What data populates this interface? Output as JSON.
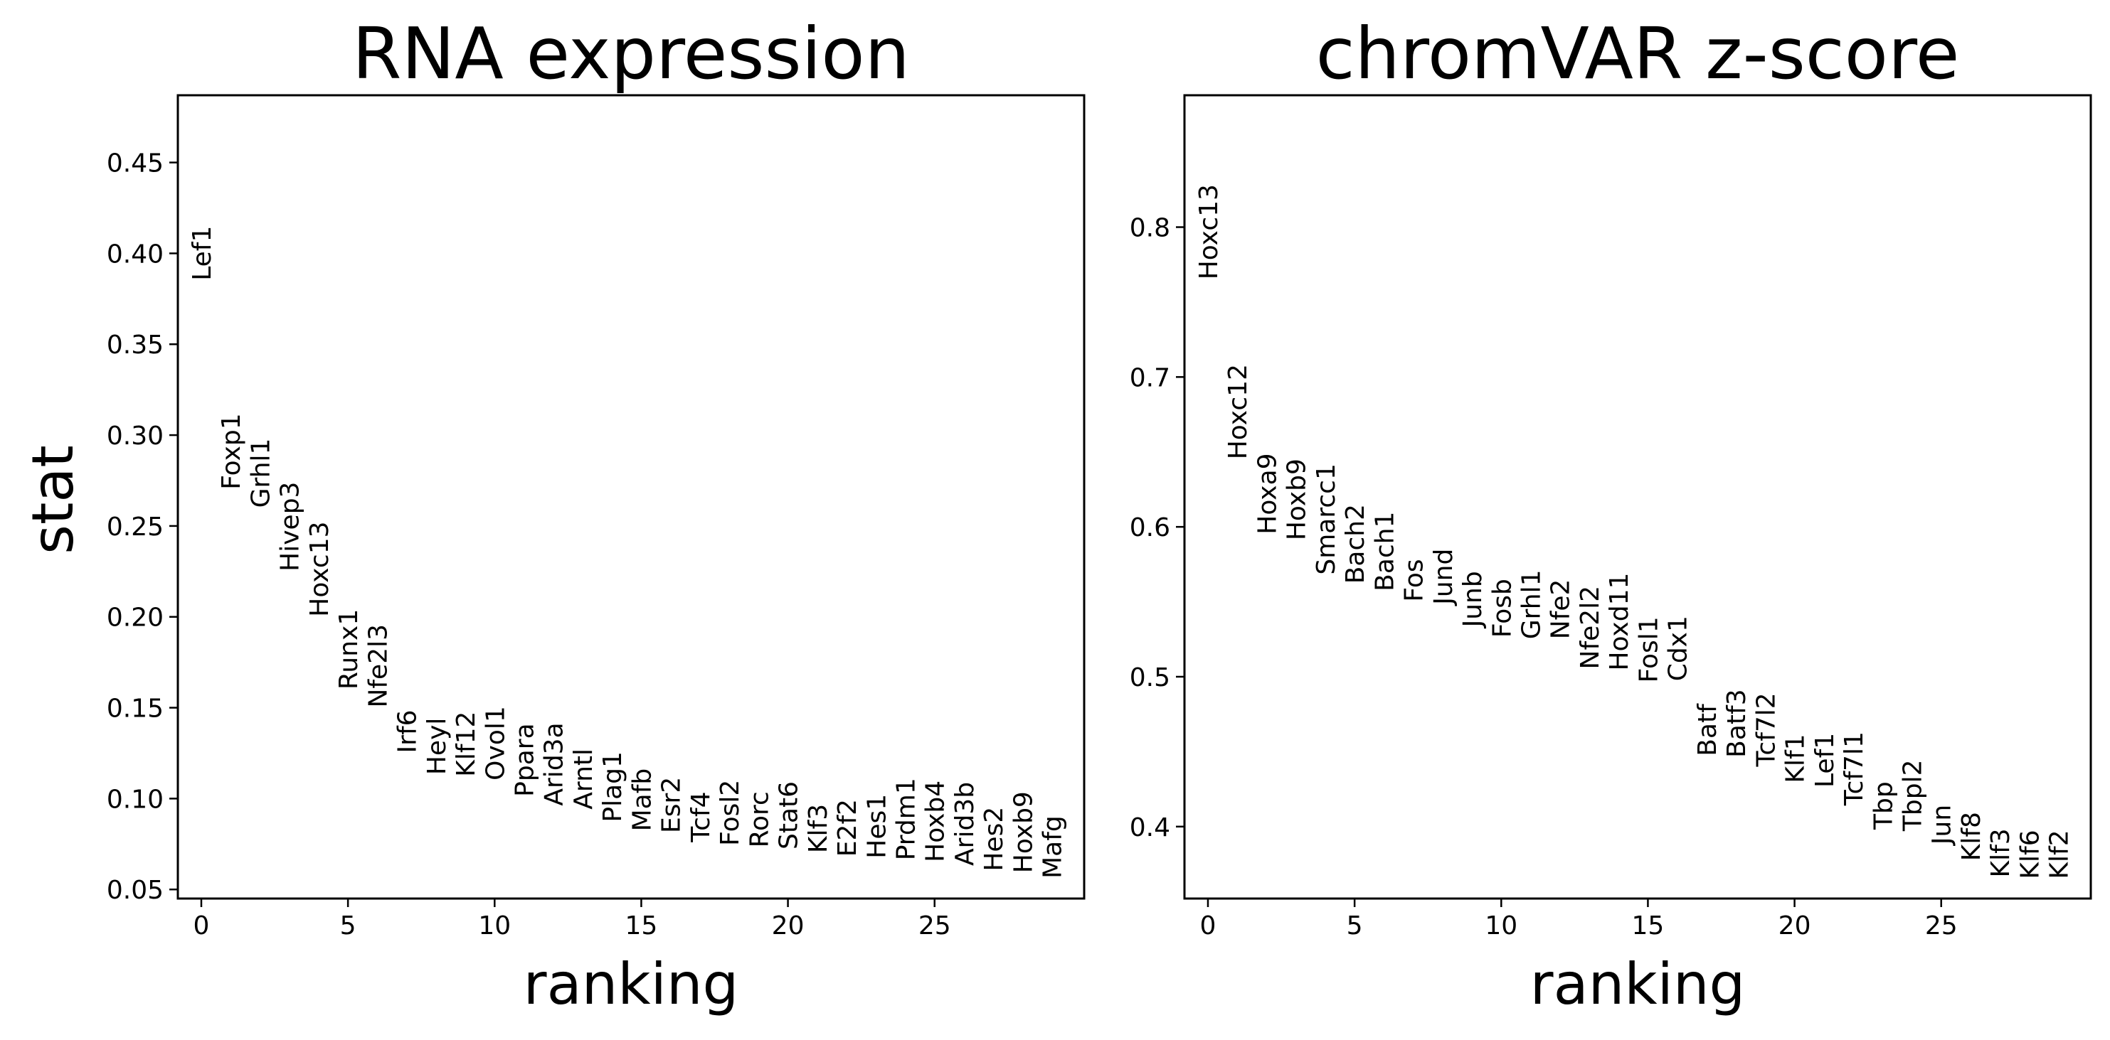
{
  "chart_data": [
    {
      "type": "scatter",
      "title": "RNA expression",
      "xlabel": "ranking",
      "ylabel": "stat",
      "xlim": [
        -0.8,
        30.1
      ],
      "ylim": [
        0.045,
        0.487
      ],
      "xticks": [
        0,
        5,
        10,
        15,
        20,
        25
      ],
      "yticks": [
        0.05,
        0.1,
        0.15,
        0.2,
        0.25,
        0.3,
        0.35,
        0.4,
        0.45
      ],
      "ytick_decimals": 2,
      "points": [
        {
          "label": "Lef1",
          "x": 0,
          "y": 0.385
        },
        {
          "label": "Foxp1",
          "x": 1,
          "y": 0.27
        },
        {
          "label": "Grhl1",
          "x": 2,
          "y": 0.26
        },
        {
          "label": "Hivep3",
          "x": 3,
          "y": 0.225
        },
        {
          "label": "Hoxc13",
          "x": 4,
          "y": 0.2
        },
        {
          "label": "Runx1",
          "x": 5,
          "y": 0.16
        },
        {
          "label": "Nfe2l3",
          "x": 6,
          "y": 0.15
        },
        {
          "label": "Irf6",
          "x": 7,
          "y": 0.125
        },
        {
          "label": "Heyl",
          "x": 8,
          "y": 0.113
        },
        {
          "label": "Klf12",
          "x": 9,
          "y": 0.112
        },
        {
          "label": "Ovol1",
          "x": 10,
          "y": 0.11
        },
        {
          "label": "Ppara",
          "x": 11,
          "y": 0.101
        },
        {
          "label": "Arid3a",
          "x": 12,
          "y": 0.096
        },
        {
          "label": "Arntl",
          "x": 13,
          "y": 0.094
        },
        {
          "label": "Plag1",
          "x": 14,
          "y": 0.087
        },
        {
          "label": "Mafb",
          "x": 15,
          "y": 0.082
        },
        {
          "label": "Esr2",
          "x": 16,
          "y": 0.081
        },
        {
          "label": "Tcf4",
          "x": 17,
          "y": 0.076
        },
        {
          "label": "Fosl2",
          "x": 18,
          "y": 0.074
        },
        {
          "label": "Rorc",
          "x": 19,
          "y": 0.073
        },
        {
          "label": "Stat6",
          "x": 20,
          "y": 0.072
        },
        {
          "label": "Klf3",
          "x": 21,
          "y": 0.07
        },
        {
          "label": "E2f2",
          "x": 22,
          "y": 0.068
        },
        {
          "label": "Hes1",
          "x": 23,
          "y": 0.067
        },
        {
          "label": "Prdm1",
          "x": 24,
          "y": 0.066
        },
        {
          "label": "Hoxb4",
          "x": 25,
          "y": 0.065
        },
        {
          "label": "Arid3b",
          "x": 26,
          "y": 0.063
        },
        {
          "label": "Hes2",
          "x": 27,
          "y": 0.06
        },
        {
          "label": "Hoxb9",
          "x": 28,
          "y": 0.059
        },
        {
          "label": "Mafg",
          "x": 29,
          "y": 0.056
        }
      ]
    },
    {
      "type": "scatter",
      "title": "chromVAR z-score",
      "xlabel": "ranking",
      "ylabel": "",
      "xlim": [
        -0.8,
        30.1
      ],
      "ylim": [
        0.352,
        0.888
      ],
      "xticks": [
        0,
        5,
        10,
        15,
        20,
        25
      ],
      "yticks": [
        0.4,
        0.5,
        0.6,
        0.7,
        0.8
      ],
      "ytick_decimals": 1,
      "points": [
        {
          "label": "Hoxc13",
          "x": 0,
          "y": 0.765
        },
        {
          "label": "Hoxc12",
          "x": 1,
          "y": 0.645
        },
        {
          "label": "Hoxa9",
          "x": 2,
          "y": 0.595
        },
        {
          "label": "Hoxb9",
          "x": 3,
          "y": 0.591
        },
        {
          "label": "Smarcc1",
          "x": 4,
          "y": 0.568
        },
        {
          "label": "Bach2",
          "x": 5,
          "y": 0.562
        },
        {
          "label": "Bach1",
          "x": 6,
          "y": 0.557
        },
        {
          "label": "Fos",
          "x": 7,
          "y": 0.55
        },
        {
          "label": "Jund",
          "x": 8,
          "y": 0.548
        },
        {
          "label": "Junb",
          "x": 9,
          "y": 0.533
        },
        {
          "label": "Fosb",
          "x": 10,
          "y": 0.526
        },
        {
          "label": "Grhl1",
          "x": 11,
          "y": 0.525
        },
        {
          "label": "Nfe2",
          "x": 12,
          "y": 0.525
        },
        {
          "label": "Nfe2l2",
          "x": 13,
          "y": 0.505
        },
        {
          "label": "Hoxd11",
          "x": 14,
          "y": 0.504
        },
        {
          "label": "Fosl1",
          "x": 15,
          "y": 0.496
        },
        {
          "label": "Cdx1",
          "x": 16,
          "y": 0.497
        },
        {
          "label": "Batf",
          "x": 17,
          "y": 0.447
        },
        {
          "label": "Batf3",
          "x": 18,
          "y": 0.446
        },
        {
          "label": "Tcf7l2",
          "x": 19,
          "y": 0.44
        },
        {
          "label": "Klf1",
          "x": 20,
          "y": 0.429
        },
        {
          "label": "Lef1",
          "x": 21,
          "y": 0.426
        },
        {
          "label": "Tcf7l1",
          "x": 22,
          "y": 0.414
        },
        {
          "label": "Tbp",
          "x": 23,
          "y": 0.398
        },
        {
          "label": "Tbpl2",
          "x": 24,
          "y": 0.397
        },
        {
          "label": "Jun",
          "x": 25,
          "y": 0.388
        },
        {
          "label": "Klf8",
          "x": 26,
          "y": 0.377
        },
        {
          "label": "Klf3",
          "x": 27,
          "y": 0.366
        },
        {
          "label": "Klf6",
          "x": 28,
          "y": 0.365
        },
        {
          "label": "Klf2",
          "x": 29,
          "y": 0.365
        }
      ]
    }
  ]
}
